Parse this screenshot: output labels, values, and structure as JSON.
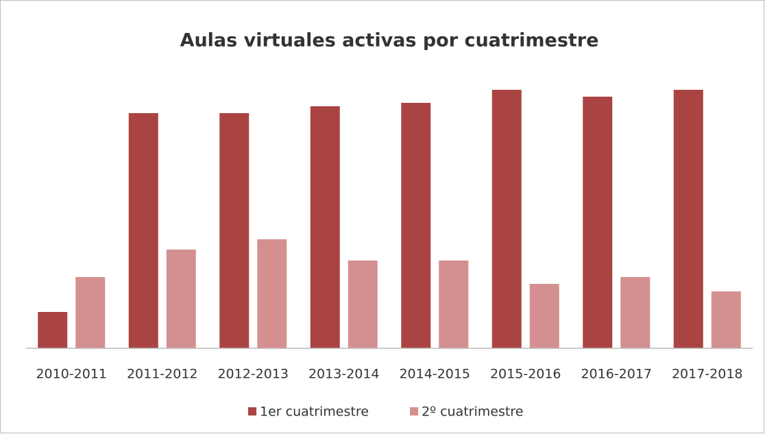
{
  "chart_data": {
    "type": "bar",
    "title": "Aulas virtuales activas por cuatrimestre",
    "categories": [
      "2010-2011",
      "2011-2012",
      "2012-2013",
      "2013-2014",
      "2014-2015",
      "2015-2016",
      "2016-2017",
      "2017-2018"
    ],
    "series": [
      {
        "name": "1er cuatrimestre",
        "color": "#a94442",
        "values": [
          53,
          343,
          343,
          353,
          358,
          377,
          367,
          377
        ]
      },
      {
        "name": "2º cuatrimestre",
        "color": "#d49090",
        "values": [
          104,
          144,
          159,
          128,
          128,
          94,
          104,
          83
        ]
      }
    ],
    "ylim": [
      0,
      400
    ],
    "legend": "bottom"
  }
}
